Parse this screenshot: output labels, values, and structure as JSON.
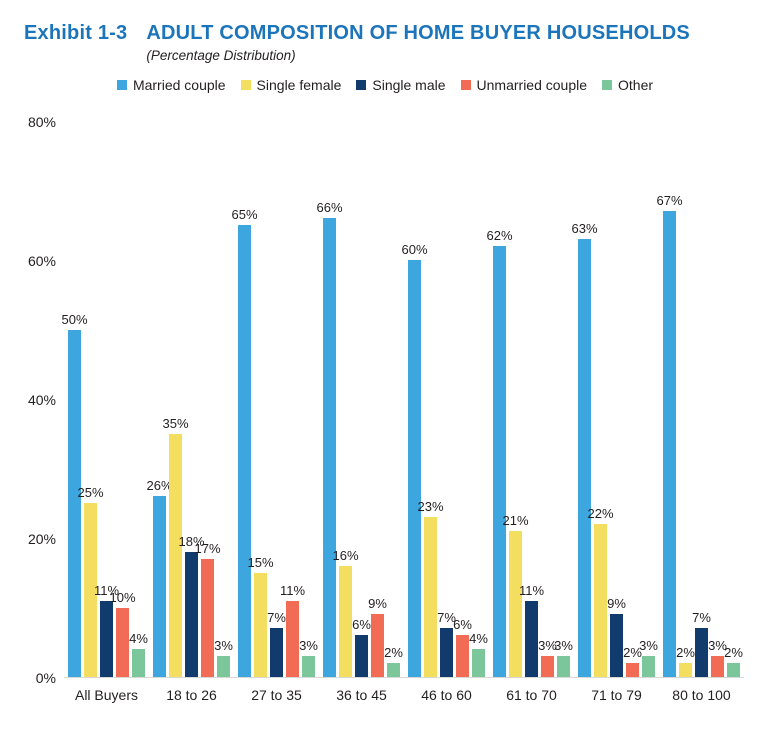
{
  "header": {
    "exhibit_label": "Exhibit 1-3",
    "title": "ADULT COMPOSITION OF HOME BUYER HOUSEHOLDS",
    "subtitle": "(Percentage Distribution)"
  },
  "colors": {
    "title_blue": "#1C75BB",
    "axis_line": "#D8D8D8",
    "text": "#231F20"
  },
  "chart_data": {
    "type": "bar",
    "title": "ADULT COMPOSITION OF HOME BUYER HOUSEHOLDS",
    "subtitle": "(Percentage Distribution)",
    "categories": [
      "All Buyers",
      "18 to 26",
      "27 to 35",
      "36 to 45",
      "46 to 60",
      "61 to 70",
      "71 to 79",
      "80 to 100"
    ],
    "series": [
      {
        "name": "Married couple",
        "color": "#3EA6DE",
        "values": [
          50,
          26,
          65,
          66,
          60,
          62,
          63,
          67
        ]
      },
      {
        "name": "Single female",
        "color": "#F4DE60",
        "values": [
          25,
          35,
          15,
          16,
          23,
          21,
          22,
          2
        ]
      },
      {
        "name": "Single male",
        "color": "#113A6D",
        "values": [
          11,
          18,
          7,
          6,
          7,
          11,
          9,
          7
        ]
      },
      {
        "name": "Unmarried couple",
        "color": "#F26C55",
        "values": [
          10,
          17,
          11,
          9,
          6,
          3,
          2,
          3
        ]
      },
      {
        "name": "Other",
        "color": "#7CC69B",
        "values": [
          4,
          3,
          3,
          2,
          4,
          3,
          3,
          2
        ]
      }
    ],
    "ylim": [
      0,
      80
    ],
    "yticks": [
      "80%",
      "60%",
      "40%",
      "20%",
      "0%"
    ],
    "value_suffix": "%",
    "grid": false,
    "legend_position": "top",
    "xlabel": "",
    "ylabel": ""
  }
}
